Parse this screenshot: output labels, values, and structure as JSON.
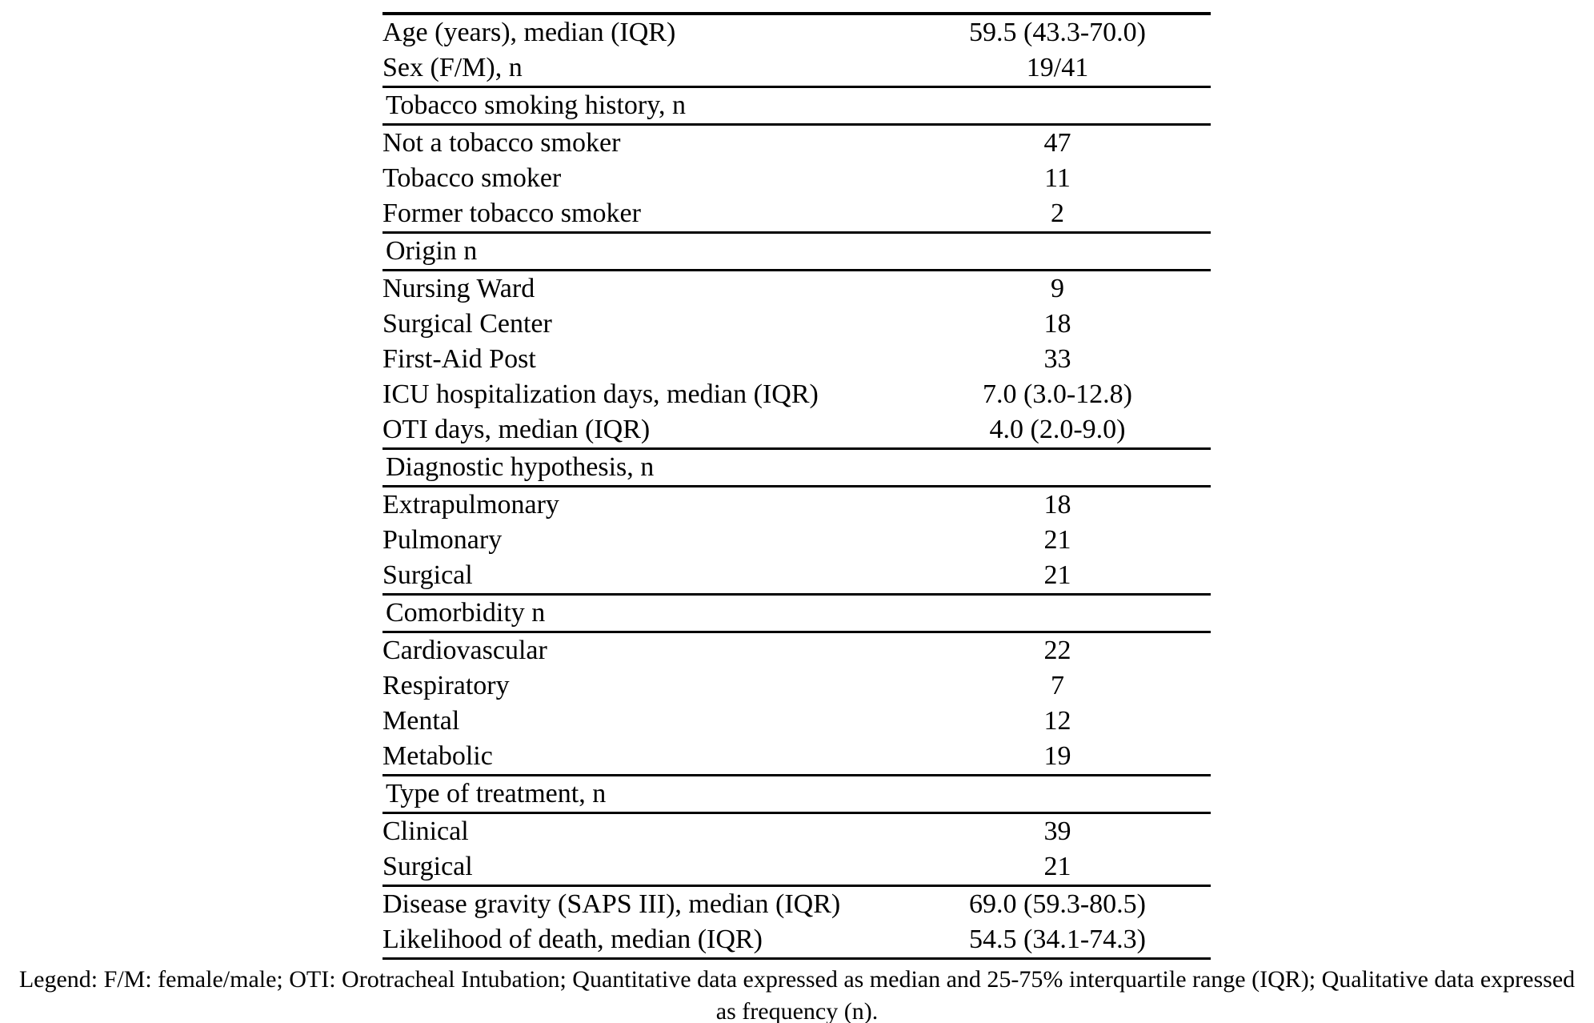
{
  "colors": {
    "background": "#ffffff",
    "text": "#000000",
    "rule": "#000000"
  },
  "table": {
    "rows": [
      {
        "type": "data",
        "label": "Age (years), median (IQR)",
        "value": "59.5 (43.3-70.0)"
      },
      {
        "type": "data",
        "label": "Sex (F/M), n",
        "value": "19/41"
      },
      {
        "type": "section",
        "label": "Tobacco smoking history, n"
      },
      {
        "type": "data",
        "label": "Not a tobacco smoker",
        "value": "47"
      },
      {
        "type": "data",
        "label": "Tobacco smoker",
        "value": "11"
      },
      {
        "type": "data",
        "label": "Former tobacco smoker",
        "value": "2"
      },
      {
        "type": "section",
        "label": "Origin n"
      },
      {
        "type": "data",
        "label": "Nursing Ward",
        "value": "9"
      },
      {
        "type": "data",
        "label": "Surgical Center",
        "value": "18"
      },
      {
        "type": "data",
        "label": "First-Aid Post",
        "value": "33"
      },
      {
        "type": "data",
        "label": "ICU hospitalization days, median (IQR)",
        "value": "7.0 (3.0-12.8)"
      },
      {
        "type": "data",
        "label": "OTI days, median (IQR)",
        "value": "4.0 (2.0-9.0)"
      },
      {
        "type": "section",
        "label": "Diagnostic hypothesis, n"
      },
      {
        "type": "data",
        "label": "Extrapulmonary",
        "value": "18"
      },
      {
        "type": "data",
        "label": "Pulmonary",
        "value": "21"
      },
      {
        "type": "data",
        "label": "Surgical",
        "value": "21"
      },
      {
        "type": "section",
        "label": "Comorbidity n"
      },
      {
        "type": "data",
        "label": "Cardiovascular",
        "value": "22"
      },
      {
        "type": "data",
        "label": "Respiratory",
        "value": "7"
      },
      {
        "type": "data",
        "label": "Mental",
        "value": "12"
      },
      {
        "type": "data",
        "label": "Metabolic",
        "value": "19"
      },
      {
        "type": "section",
        "label": "Type of treatment, n"
      },
      {
        "type": "data",
        "label": "Clinical",
        "value": "39"
      },
      {
        "type": "data",
        "label": "Surgical",
        "value": "21"
      },
      {
        "type": "data",
        "label": "Disease gravity (SAPS III), median (IQR)",
        "value": "69.0 (59.3-80.5)",
        "rule_above": true
      },
      {
        "type": "data",
        "label": "Likelihood of death, median (IQR)",
        "value": "54.5 (34.1-74.3)"
      }
    ]
  },
  "legend": {
    "text": "Legend: F/M: female/male; OTI: Orotracheal Intubation; Quantitative data expressed as median and 25-75% interquartile range (IQR); Qualitative data expressed as frequency (n)."
  }
}
